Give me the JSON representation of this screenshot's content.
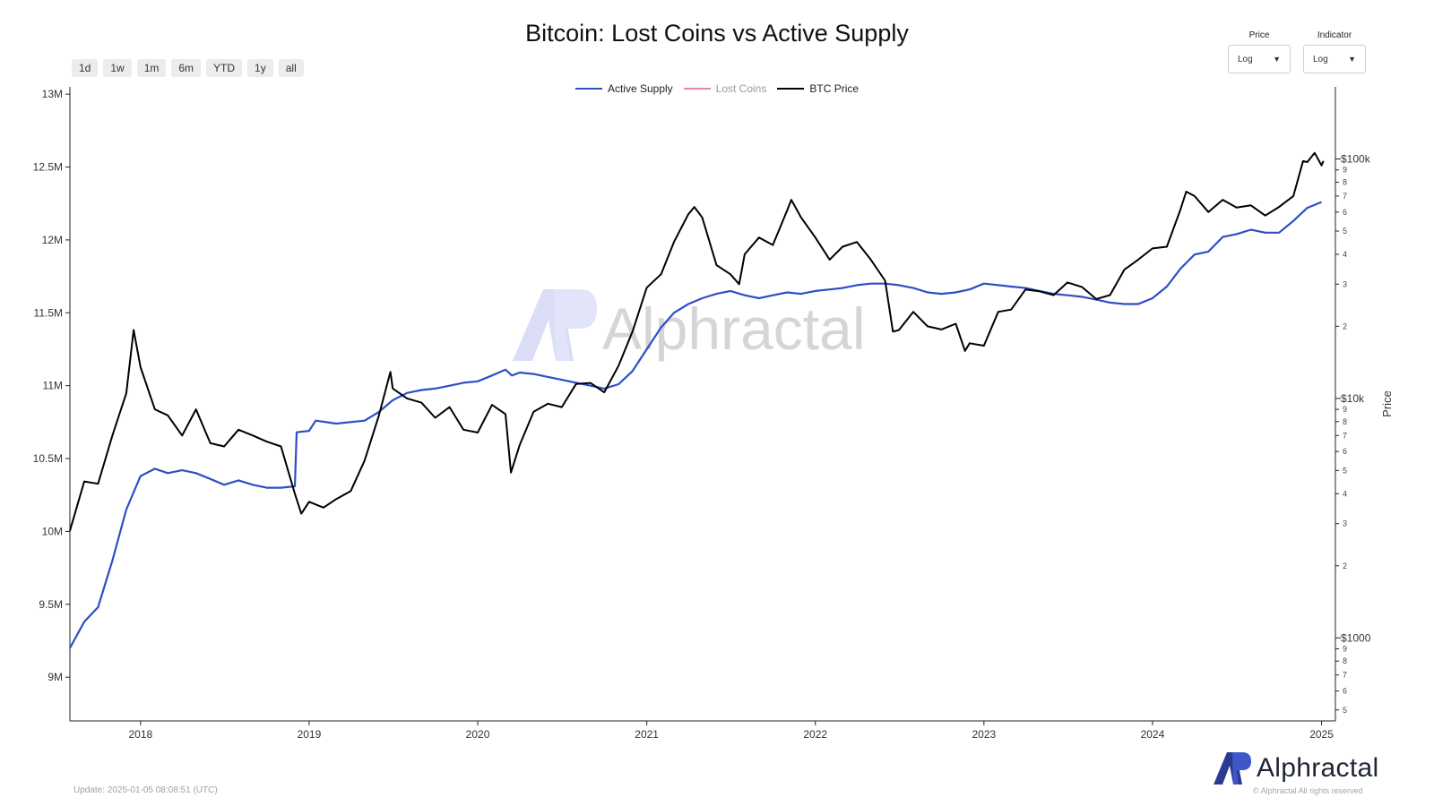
{
  "title": "Bitcoin: Lost Coins vs Active Supply",
  "range_buttons": [
    "1d",
    "1w",
    "1m",
    "6m",
    "YTD",
    "1y",
    "all"
  ],
  "price_select": {
    "label": "Price",
    "value": "Log"
  },
  "indicator_select": {
    "label": "Indicator",
    "value": "Log"
  },
  "watermark": "Alphractal",
  "brand": "Alphractal",
  "copyright": "© Alphractal All rights reserved",
  "update": "Update: 2025-01-05 08:08:51 (UTC)",
  "colors": {
    "active_supply": "#2e4fc4",
    "lost_coins": "#e58a9a",
    "btc_price": "#000000",
    "watermark": "#c9ccf2"
  },
  "chart_data": {
    "type": "line",
    "xlabel": "",
    "x_ticks": [
      "2018",
      "2019",
      "2020",
      "2021",
      "2022",
      "2023",
      "2024",
      "2025"
    ],
    "x_range": [
      "2017-08-01",
      "2025-01-31"
    ],
    "left_axis": {
      "scale": "linear",
      "range": [
        8700000,
        13050000
      ],
      "ticks": [
        {
          "value": 9000000,
          "label": "9M"
        },
        {
          "value": 9500000,
          "label": "9.5M"
        },
        {
          "value": 10000000,
          "label": "10M"
        },
        {
          "value": 10500000,
          "label": "10.5M"
        },
        {
          "value": 11000000,
          "label": "11M"
        },
        {
          "value": 11500000,
          "label": "11.5M"
        },
        {
          "value": 12000000,
          "label": "12M"
        },
        {
          "value": 12500000,
          "label": "12.5M"
        },
        {
          "value": 13000000,
          "label": "13M"
        }
      ]
    },
    "right_axis": {
      "label": "Price",
      "scale": "log",
      "range": [
        450,
        200000
      ],
      "major_ticks": [
        {
          "value": 1000,
          "label": "$1000"
        },
        {
          "value": 10000,
          "label": "$10k"
        },
        {
          "value": 100000,
          "label": "$100k"
        }
      ],
      "minor_ticks": [
        {
          "value": 500,
          "label": "5"
        },
        {
          "value": 600,
          "label": "6"
        },
        {
          "value": 700,
          "label": "7"
        },
        {
          "value": 800,
          "label": "8"
        },
        {
          "value": 900,
          "label": "9"
        },
        {
          "value": 2000,
          "label": "2"
        },
        {
          "value": 3000,
          "label": "3"
        },
        {
          "value": 4000,
          "label": "4"
        },
        {
          "value": 5000,
          "label": "5"
        },
        {
          "value": 6000,
          "label": "6"
        },
        {
          "value": 7000,
          "label": "7"
        },
        {
          "value": 8000,
          "label": "8"
        },
        {
          "value": 9000,
          "label": "9"
        },
        {
          "value": 20000,
          "label": "2"
        },
        {
          "value": 30000,
          "label": "3"
        },
        {
          "value": 40000,
          "label": "4"
        },
        {
          "value": 50000,
          "label": "5"
        },
        {
          "value": 60000,
          "label": "6"
        },
        {
          "value": 70000,
          "label": "7"
        },
        {
          "value": 80000,
          "label": "8"
        },
        {
          "value": 90000,
          "label": "9"
        }
      ]
    },
    "legend_position": "top-center",
    "grid": false,
    "series": [
      {
        "name": "Active Supply",
        "axis": "left",
        "color": "#2e4fc4",
        "points": [
          [
            "2017-08-01",
            9200000
          ],
          [
            "2017-09-01",
            9380000
          ],
          [
            "2017-10-01",
            9480000
          ],
          [
            "2017-11-01",
            9800000
          ],
          [
            "2017-12-01",
            10150000
          ],
          [
            "2018-01-01",
            10380000
          ],
          [
            "2018-02-01",
            10430000
          ],
          [
            "2018-03-01",
            10400000
          ],
          [
            "2018-04-01",
            10420000
          ],
          [
            "2018-05-01",
            10400000
          ],
          [
            "2018-06-01",
            10360000
          ],
          [
            "2018-07-01",
            10320000
          ],
          [
            "2018-08-01",
            10350000
          ],
          [
            "2018-09-01",
            10320000
          ],
          [
            "2018-10-01",
            10300000
          ],
          [
            "2018-11-01",
            10300000
          ],
          [
            "2018-12-01",
            10310000
          ],
          [
            "2018-12-05",
            10680000
          ],
          [
            "2019-01-01",
            10690000
          ],
          [
            "2019-01-15",
            10760000
          ],
          [
            "2019-03-01",
            10740000
          ],
          [
            "2019-05-01",
            10760000
          ],
          [
            "2019-06-01",
            10820000
          ],
          [
            "2019-07-01",
            10900000
          ],
          [
            "2019-08-01",
            10950000
          ],
          [
            "2019-09-01",
            10970000
          ],
          [
            "2019-10-01",
            10980000
          ],
          [
            "2019-11-01",
            11000000
          ],
          [
            "2019-12-01",
            11020000
          ],
          [
            "2020-01-01",
            11030000
          ],
          [
            "2020-02-01",
            11070000
          ],
          [
            "2020-03-01",
            11110000
          ],
          [
            "2020-03-15",
            11070000
          ],
          [
            "2020-04-01",
            11090000
          ],
          [
            "2020-05-01",
            11080000
          ],
          [
            "2020-06-01",
            11060000
          ],
          [
            "2020-07-01",
            11040000
          ],
          [
            "2020-08-01",
            11020000
          ],
          [
            "2020-09-01",
            11000000
          ],
          [
            "2020-10-01",
            10980000
          ],
          [
            "2020-11-01",
            11010000
          ],
          [
            "2020-12-01",
            11100000
          ],
          [
            "2021-01-01",
            11250000
          ],
          [
            "2021-02-01",
            11400000
          ],
          [
            "2021-03-01",
            11500000
          ],
          [
            "2021-04-01",
            11560000
          ],
          [
            "2021-05-01",
            11600000
          ],
          [
            "2021-06-01",
            11630000
          ],
          [
            "2021-07-01",
            11650000
          ],
          [
            "2021-08-01",
            11620000
          ],
          [
            "2021-09-01",
            11600000
          ],
          [
            "2021-10-01",
            11620000
          ],
          [
            "2021-11-01",
            11640000
          ],
          [
            "2021-12-01",
            11630000
          ],
          [
            "2022-01-01",
            11650000
          ],
          [
            "2022-02-01",
            11660000
          ],
          [
            "2022-03-01",
            11670000
          ],
          [
            "2022-04-01",
            11690000
          ],
          [
            "2022-05-01",
            11700000
          ],
          [
            "2022-06-01",
            11700000
          ],
          [
            "2022-07-01",
            11690000
          ],
          [
            "2022-08-01",
            11670000
          ],
          [
            "2022-09-01",
            11640000
          ],
          [
            "2022-10-01",
            11630000
          ],
          [
            "2022-11-01",
            11640000
          ],
          [
            "2022-12-01",
            11660000
          ],
          [
            "2023-01-01",
            11700000
          ],
          [
            "2023-02-01",
            11690000
          ],
          [
            "2023-03-01",
            11680000
          ],
          [
            "2023-04-01",
            11670000
          ],
          [
            "2023-05-01",
            11650000
          ],
          [
            "2023-06-01",
            11630000
          ],
          [
            "2023-07-01",
            11620000
          ],
          [
            "2023-08-01",
            11610000
          ],
          [
            "2023-09-01",
            11590000
          ],
          [
            "2023-10-01",
            11570000
          ],
          [
            "2023-11-01",
            11560000
          ],
          [
            "2023-12-01",
            11560000
          ],
          [
            "2024-01-01",
            11600000
          ],
          [
            "2024-02-01",
            11680000
          ],
          [
            "2024-03-01",
            11800000
          ],
          [
            "2024-04-01",
            11900000
          ],
          [
            "2024-05-01",
            11920000
          ],
          [
            "2024-06-01",
            12020000
          ],
          [
            "2024-07-01",
            12040000
          ],
          [
            "2024-08-01",
            12070000
          ],
          [
            "2024-09-01",
            12050000
          ],
          [
            "2024-10-01",
            12050000
          ],
          [
            "2024-11-01",
            12130000
          ],
          [
            "2024-12-01",
            12220000
          ],
          [
            "2025-01-01",
            12260000
          ]
        ]
      },
      {
        "name": "Lost Coins",
        "axis": "left",
        "color": "#e58a9a",
        "hidden": true,
        "points": []
      },
      {
        "name": "BTC Price",
        "axis": "right",
        "color": "#000000",
        "points": [
          [
            "2017-08-01",
            2800
          ],
          [
            "2017-09-01",
            4500
          ],
          [
            "2017-10-01",
            4400
          ],
          [
            "2017-11-01",
            7000
          ],
          [
            "2017-12-01",
            10500
          ],
          [
            "2017-12-17",
            19300
          ],
          [
            "2018-01-01",
            13500
          ],
          [
            "2018-02-01",
            9000
          ],
          [
            "2018-03-01",
            8500
          ],
          [
            "2018-04-01",
            7000
          ],
          [
            "2018-05-01",
            9000
          ],
          [
            "2018-06-01",
            6500
          ],
          [
            "2018-07-01",
            6300
          ],
          [
            "2018-08-01",
            7400
          ],
          [
            "2018-09-01",
            7000
          ],
          [
            "2018-10-01",
            6600
          ],
          [
            "2018-11-01",
            6300
          ],
          [
            "2018-12-01",
            4000
          ],
          [
            "2018-12-15",
            3300
          ],
          [
            "2019-01-01",
            3700
          ],
          [
            "2019-02-01",
            3500
          ],
          [
            "2019-03-01",
            3800
          ],
          [
            "2019-04-01",
            4100
          ],
          [
            "2019-05-01",
            5500
          ],
          [
            "2019-06-01",
            8500
          ],
          [
            "2019-06-26",
            12900
          ],
          [
            "2019-07-01",
            11000
          ],
          [
            "2019-08-01",
            10000
          ],
          [
            "2019-09-01",
            9600
          ],
          [
            "2019-10-01",
            8300
          ],
          [
            "2019-11-01",
            9200
          ],
          [
            "2019-12-01",
            7400
          ],
          [
            "2020-01-01",
            7200
          ],
          [
            "2020-02-01",
            9400
          ],
          [
            "2020-03-01",
            8600
          ],
          [
            "2020-03-13",
            4900
          ],
          [
            "2020-04-01",
            6400
          ],
          [
            "2020-05-01",
            8800
          ],
          [
            "2020-06-01",
            9500
          ],
          [
            "2020-07-01",
            9200
          ],
          [
            "2020-08-01",
            11500
          ],
          [
            "2020-09-01",
            11600
          ],
          [
            "2020-10-01",
            10600
          ],
          [
            "2020-11-01",
            13700
          ],
          [
            "2020-12-01",
            19000
          ],
          [
            "2021-01-01",
            29000
          ],
          [
            "2021-02-01",
            33000
          ],
          [
            "2021-03-01",
            45000
          ],
          [
            "2021-04-01",
            58800
          ],
          [
            "2021-04-14",
            63000
          ],
          [
            "2021-05-01",
            57000
          ],
          [
            "2021-06-01",
            36000
          ],
          [
            "2021-07-01",
            33000
          ],
          [
            "2021-07-20",
            30000
          ],
          [
            "2021-08-01",
            40000
          ],
          [
            "2021-09-01",
            47000
          ],
          [
            "2021-10-01",
            43700
          ],
          [
            "2021-11-01",
            61000
          ],
          [
            "2021-11-10",
            67500
          ],
          [
            "2021-12-01",
            57000
          ],
          [
            "2022-01-01",
            47000
          ],
          [
            "2022-02-01",
            38000
          ],
          [
            "2022-03-01",
            43000
          ],
          [
            "2022-04-01",
            45000
          ],
          [
            "2022-05-01",
            38000
          ],
          [
            "2022-06-01",
            31000
          ],
          [
            "2022-06-18",
            19000
          ],
          [
            "2022-07-01",
            19300
          ],
          [
            "2022-08-01",
            23000
          ],
          [
            "2022-09-01",
            20000
          ],
          [
            "2022-10-01",
            19400
          ],
          [
            "2022-11-01",
            20500
          ],
          [
            "2022-11-21",
            15800
          ],
          [
            "2022-12-01",
            17000
          ],
          [
            "2023-01-01",
            16600
          ],
          [
            "2023-02-01",
            23000
          ],
          [
            "2023-03-01",
            23500
          ],
          [
            "2023-04-01",
            28500
          ],
          [
            "2023-05-01",
            28000
          ],
          [
            "2023-06-01",
            27000
          ],
          [
            "2023-07-01",
            30500
          ],
          [
            "2023-08-01",
            29200
          ],
          [
            "2023-09-01",
            26000
          ],
          [
            "2023-10-01",
            27000
          ],
          [
            "2023-11-01",
            34500
          ],
          [
            "2023-12-01",
            38000
          ],
          [
            "2024-01-01",
            42300
          ],
          [
            "2024-02-01",
            43000
          ],
          [
            "2024-03-01",
            61000
          ],
          [
            "2024-03-14",
            73000
          ],
          [
            "2024-04-01",
            70000
          ],
          [
            "2024-05-01",
            60000
          ],
          [
            "2024-06-01",
            67500
          ],
          [
            "2024-07-01",
            62700
          ],
          [
            "2024-08-01",
            64000
          ],
          [
            "2024-09-01",
            58000
          ],
          [
            "2024-10-01",
            63000
          ],
          [
            "2024-11-01",
            70000
          ],
          [
            "2024-11-22",
            98000
          ],
          [
            "2024-12-01",
            97000
          ],
          [
            "2024-12-17",
            106000
          ],
          [
            "2025-01-01",
            94000
          ],
          [
            "2025-01-05",
            98000
          ]
        ]
      }
    ]
  }
}
